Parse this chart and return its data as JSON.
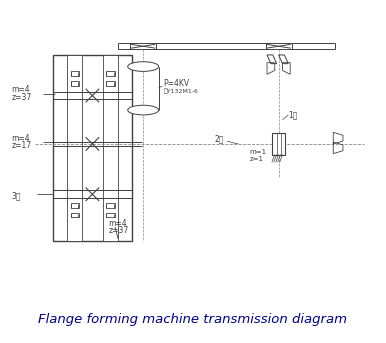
{
  "title": "Flange forming machine transmission diagram",
  "title_color": "#00008B",
  "title_fontsize": 9.5,
  "bg_color": "#ffffff",
  "line_color": "#404040",
  "fig_width": 3.86,
  "fig_height": 3.43,
  "dpi": 100,
  "labels": {
    "motor_power": "P=4KV",
    "motor_model": "型Y132M1-6",
    "shaft1": "1轴",
    "shaft2": "2轴",
    "shaft3": "3轴",
    "gear_top_m": "m=4",
    "gear_top_z": "z=37",
    "gear_mid_m": "m=4",
    "gear_mid_z": "z=17",
    "gear_bot_m": "m=4",
    "gear_bot_z": "z=37",
    "worm_m": "m=1",
    "worm_z": "z=1"
  }
}
